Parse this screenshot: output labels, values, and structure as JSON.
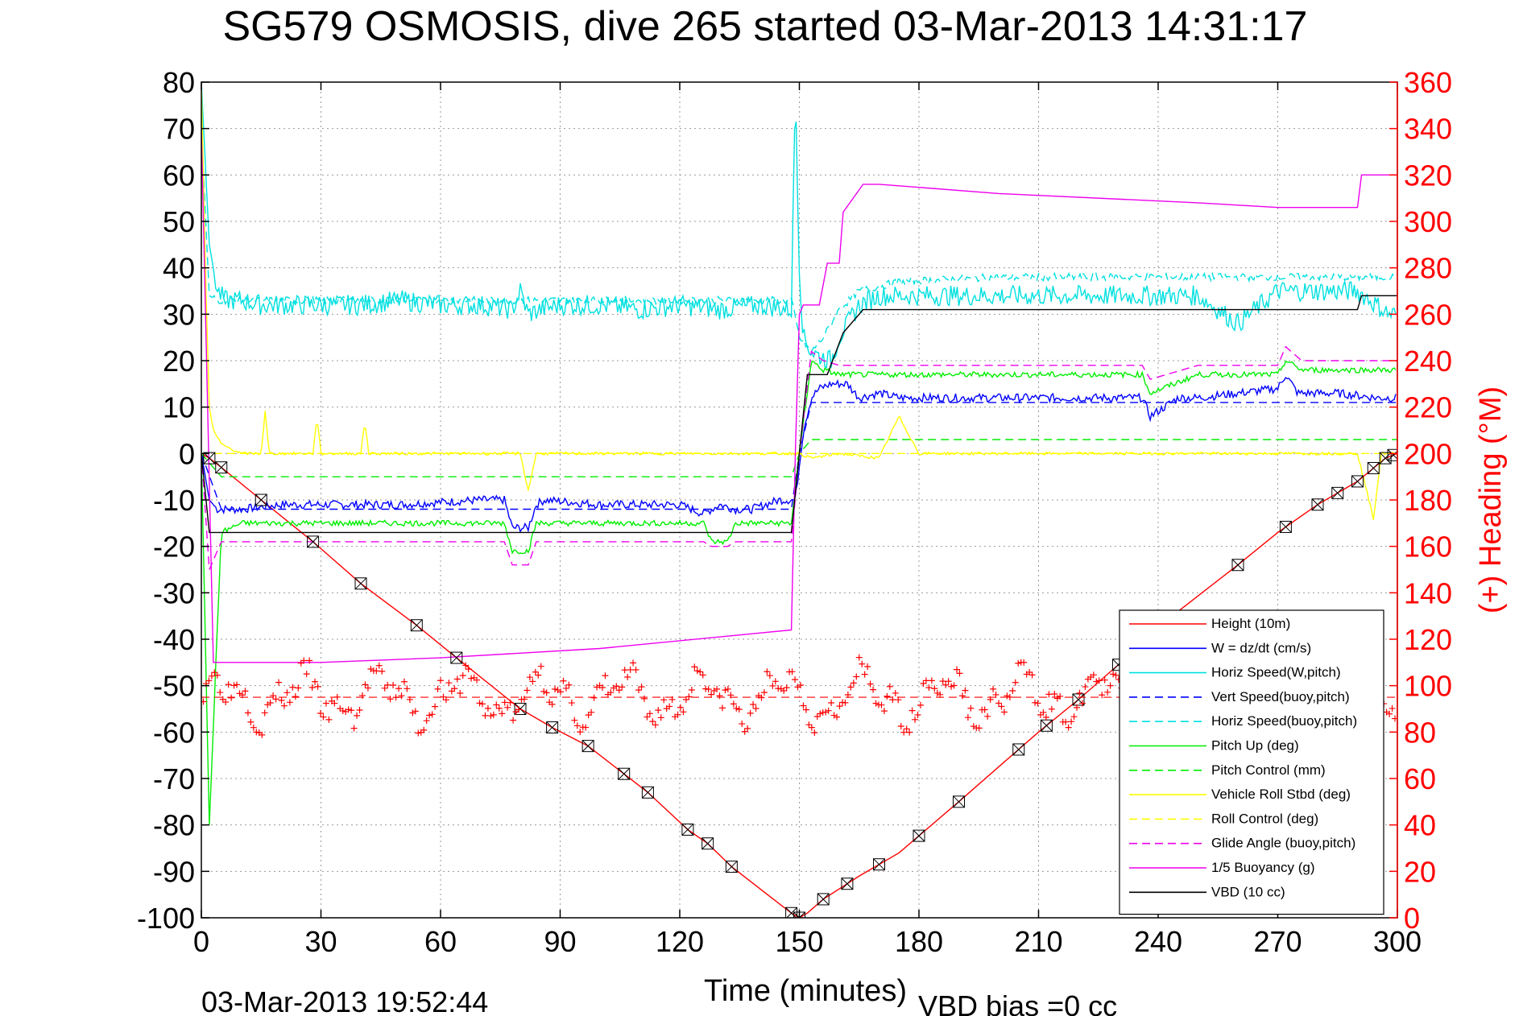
{
  "chart_data": {
    "type": "line",
    "title": "SG579 OSMOSIS, dive 265 started 03-Mar-2013 14:31:17",
    "xlabel": "Time (minutes)",
    "ylabel": "",
    "y2label": "(+) Heading (°M)",
    "footer_timestamp": "03-Mar-2013 19:52:44",
    "footer_note": "VBD bias =0 cc",
    "xlim": [
      0,
      300
    ],
    "ylim": [
      -100,
      80
    ],
    "y2lim": [
      0,
      360
    ],
    "xticks": [
      0,
      30,
      60,
      90,
      120,
      150,
      180,
      210,
      240,
      270,
      300
    ],
    "yticks": [
      -100,
      -90,
      -80,
      -70,
      -60,
      -50,
      -40,
      -30,
      -20,
      -10,
      0,
      10,
      20,
      30,
      40,
      50,
      60,
      70,
      80
    ],
    "y2ticks": [
      0,
      20,
      40,
      60,
      80,
      100,
      120,
      140,
      160,
      180,
      200,
      220,
      240,
      260,
      280,
      300,
      320,
      340,
      360
    ],
    "grid": true,
    "legend_position": "bottom-right",
    "colors": {
      "heading": "#ff0000",
      "axis": "#000000",
      "grid": "#999999"
    },
    "series": [
      {
        "name": "Height (10m)",
        "color": "#ff0000",
        "dash": "solid",
        "x": [
          0,
          2,
          5,
          15,
          28,
          40,
          54,
          64,
          80,
          88,
          97,
          106,
          112,
          122,
          127,
          133,
          142,
          148,
          150,
          152,
          156,
          165,
          175,
          190,
          210,
          220,
          232,
          245,
          260,
          270,
          280,
          290,
          297,
          300
        ],
        "y": [
          0,
          -1,
          -3,
          -10,
          -19,
          -28,
          -37,
          -44,
          -55,
          -59,
          -63,
          -69,
          -73,
          -81,
          -84,
          -89,
          -95,
          -99,
          -100,
          -99,
          -96,
          -91,
          -86,
          -75,
          -60,
          -53,
          -44,
          -34,
          -24,
          -17,
          -11,
          -6,
          -1,
          0
        ]
      },
      {
        "name": "W = dz/dt (cm/s)",
        "color": "#0000ff",
        "dash": "solid",
        "x": [
          0,
          2,
          4,
          10,
          20,
          30,
          50,
          70,
          76,
          78,
          82,
          84,
          86,
          100,
          120,
          126,
          130,
          134,
          138,
          145,
          149,
          151,
          153,
          155,
          158,
          162,
          165,
          170,
          175,
          190,
          210,
          230,
          236,
          238,
          245,
          250,
          270,
          272,
          275,
          285,
          295,
          300
        ],
        "y": [
          0,
          -10,
          -12,
          -12,
          -11,
          -11,
          -11,
          -10,
          -10,
          -16,
          -16,
          -11,
          -10,
          -11,
          -11,
          -13,
          -11,
          -12,
          -12,
          -10,
          -10,
          5,
          12,
          14,
          15,
          15,
          12,
          13,
          12,
          12,
          12,
          12,
          12,
          8,
          12,
          12,
          14,
          17,
          13,
          13,
          12,
          12
        ]
      },
      {
        "name": "Horiz Speed(W,pitch)",
        "color": "#00e0e0",
        "dash": "solid",
        "x": [
          0,
          2,
          4,
          6,
          10,
          15,
          20,
          30,
          40,
          50,
          60,
          70,
          78,
          80,
          82,
          85,
          90,
          100,
          110,
          120,
          130,
          140,
          148,
          149,
          150,
          151,
          153,
          155,
          158,
          160,
          165,
          170,
          180,
          190,
          210,
          230,
          240,
          250,
          260,
          270,
          280,
          290,
          298,
          300
        ],
        "y": [
          80,
          45,
          35,
          33,
          33,
          32,
          32,
          32,
          32,
          33,
          32,
          32,
          31,
          35,
          30,
          31,
          32,
          32,
          31,
          32,
          31,
          32,
          31,
          80,
          40,
          25,
          22,
          21,
          20,
          25,
          32,
          34,
          34,
          34,
          34,
          34,
          34,
          34,
          28,
          35,
          35,
          35,
          30,
          30
        ]
      },
      {
        "name": "Vert Speed(buoy,pitch)",
        "color": "#0000ff",
        "dash": "dashed",
        "x": [
          0,
          5,
          50,
          100,
          148,
          150,
          153,
          160,
          200,
          250,
          300
        ],
        "y": [
          0,
          -12,
          -12,
          -12,
          -12,
          0,
          11,
          11,
          11,
          11,
          11
        ]
      },
      {
        "name": "Horiz Speed(buoy,pitch)",
        "color": "#00e0e0",
        "dash": "dashed",
        "x": [
          0,
          2,
          4,
          50,
          100,
          148,
          150,
          153,
          156,
          160,
          165,
          175,
          200,
          240,
          270,
          290,
          300
        ],
        "y": [
          70,
          34,
          33,
          33,
          33,
          33,
          25,
          22,
          25,
          31,
          35,
          37,
          38,
          38,
          38,
          38,
          38
        ]
      },
      {
        "name": "Pitch Up (deg)",
        "color": "#00ee00",
        "dash": "solid",
        "x": [
          0,
          2,
          5,
          10,
          30,
          60,
          76,
          78,
          82,
          84,
          100,
          126,
          128,
          132,
          134,
          148,
          150,
          153,
          156,
          160,
          170,
          180,
          200,
          230,
          236,
          238,
          250,
          270,
          272,
          276,
          290,
          300
        ],
        "y": [
          0,
          -80,
          -17,
          -15,
          -15,
          -15,
          -15,
          -21,
          -21,
          -15,
          -15,
          -15,
          -19,
          -19,
          -15,
          -15,
          0,
          20,
          18,
          17,
          17,
          17,
          17,
          17,
          17,
          13,
          17,
          17,
          20,
          18,
          18,
          18
        ]
      },
      {
        "name": "Pitch Control (mm)",
        "color": "#00ee00",
        "dash": "dashed",
        "x": [
          0,
          5,
          60,
          100,
          148,
          150,
          153,
          160,
          200,
          250,
          300
        ],
        "y": [
          0,
          -5,
          -5,
          -5,
          -5,
          0,
          3,
          3,
          3,
          3,
          3
        ]
      },
      {
        "name": "Vehicle Roll Stbd (deg)",
        "color": "#ffff00",
        "dash": "solid",
        "x": [
          0,
          1,
          2,
          3,
          5,
          10,
          15,
          16,
          17,
          20,
          28,
          29,
          30,
          40,
          41,
          42,
          60,
          80,
          82,
          84,
          100,
          120,
          140,
          148,
          150,
          153,
          160,
          170,
          175,
          180,
          200,
          220,
          240,
          260,
          280,
          290,
          294,
          296,
          300
        ],
        "y": [
          80,
          40,
          10,
          5,
          2,
          0,
          0,
          9,
          0,
          0,
          0,
          8,
          0,
          0,
          7,
          0,
          0,
          0,
          -8,
          0,
          0,
          0,
          0,
          0,
          0,
          -1,
          0,
          -1,
          8,
          0,
          0,
          0,
          0,
          0,
          0,
          0,
          -14,
          0,
          0
        ]
      },
      {
        "name": "Roll Control (deg)",
        "color": "#ffff00",
        "dash": "dashed",
        "x": [
          0,
          5,
          100,
          148,
          150,
          153,
          200,
          250,
          300
        ],
        "y": [
          0,
          0,
          0,
          0,
          0,
          0,
          0,
          0,
          0
        ]
      },
      {
        "name": "Glide Angle (buoy,pitch)",
        "color": "#ee00ee",
        "dash": "dashed",
        "x": [
          0,
          2,
          5,
          30,
          60,
          76,
          78,
          82,
          84,
          100,
          126,
          128,
          132,
          134,
          148,
          150,
          153,
          156,
          160,
          170,
          200,
          236,
          238,
          250,
          270,
          272,
          276,
          300
        ],
        "y": [
          0,
          -25,
          -19,
          -19,
          -19,
          -19,
          -24,
          -24,
          -19,
          -19,
          -19,
          -20,
          -20,
          -19,
          -19,
          0,
          22,
          20,
          19,
          19,
          19,
          19,
          16,
          19,
          19,
          23,
          20,
          20
        ]
      },
      {
        "name": "1/5 Buoyancy (g)",
        "color": "#ee00ee",
        "dash": "solid",
        "x": [
          0,
          3,
          30,
          60,
          100,
          148,
          149,
          150,
          151,
          155,
          157,
          160,
          161,
          166,
          170,
          200,
          250,
          270,
          290,
          291,
          300
        ],
        "y": [
          70,
          -45,
          -45,
          -44,
          -42,
          -38,
          0,
          30,
          32,
          32,
          41,
          41,
          52,
          58,
          58,
          56,
          54,
          53,
          53,
          60,
          60
        ]
      },
      {
        "name": "VBD (10 cc)",
        "color": "#000000",
        "dash": "solid",
        "x": [
          0,
          2,
          148,
          150,
          152,
          157,
          161,
          166,
          170,
          200,
          250,
          290,
          291,
          300
        ],
        "y": [
          0,
          -17,
          -17,
          0,
          17,
          17,
          26,
          31,
          31,
          31,
          31,
          31,
          34,
          34
        ]
      }
    ],
    "heading_series": {
      "name": "(+) Heading",
      "color": "#ff0000",
      "marker": "+",
      "axis": "right",
      "mean_line": 95
    }
  }
}
